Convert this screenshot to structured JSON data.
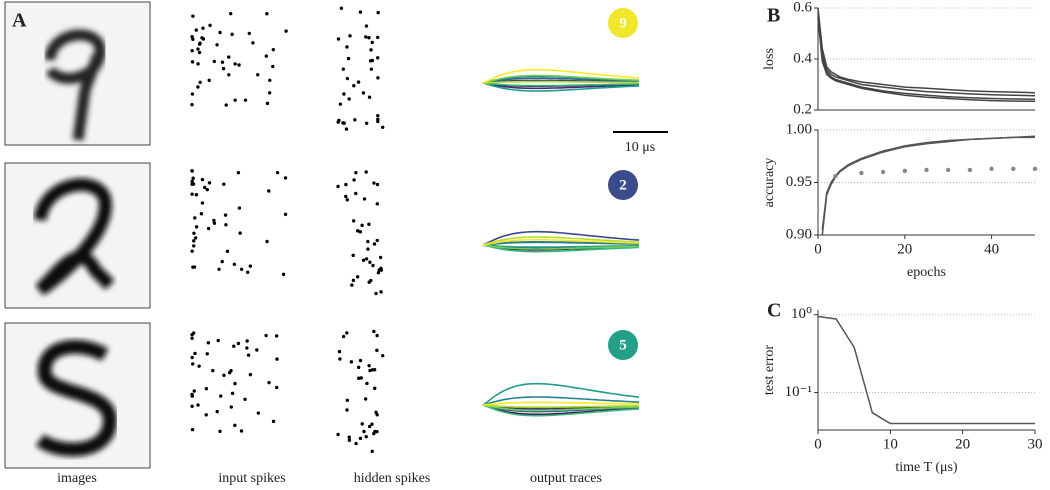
{
  "panels": {
    "a": "A",
    "b": "B",
    "c": "C"
  },
  "panel_a": {
    "column_labels": [
      "images",
      "input spikes",
      "hidden spikes",
      "output traces"
    ],
    "predictions": [
      "9",
      "2",
      "5"
    ],
    "prediction_colors": [
      "#f2e62a",
      "#3b4c8c",
      "#22a187"
    ],
    "scale_bar": "10 μs"
  },
  "chart_data": [
    {
      "type": "line",
      "ylabel": "loss",
      "xlim": [
        0,
        50
      ],
      "ylim": [
        0.2,
        0.6
      ],
      "yticks": [
        0.2,
        0.4,
        0.6
      ],
      "grid": true,
      "x": [
        0,
        1,
        2,
        3,
        4,
        5,
        7,
        10,
        15,
        20,
        25,
        30,
        35,
        40,
        45,
        50
      ],
      "series": [
        {
          "color": "#444444",
          "values": [
            0.6,
            0.44,
            0.37,
            0.35,
            0.34,
            0.33,
            0.32,
            0.31,
            0.3,
            0.29,
            0.285,
            0.28,
            0.275,
            0.272,
            0.27,
            0.268
          ]
        },
        {
          "color": "#444444",
          "values": [
            0.58,
            0.42,
            0.36,
            0.34,
            0.33,
            0.325,
            0.315,
            0.3,
            0.29,
            0.28,
            0.272,
            0.268,
            0.263,
            0.26,
            0.258,
            0.256
          ]
        },
        {
          "color": "#444444",
          "values": [
            0.57,
            0.4,
            0.35,
            0.33,
            0.32,
            0.315,
            0.305,
            0.29,
            0.275,
            0.265,
            0.258,
            0.252,
            0.248,
            0.245,
            0.243,
            0.242
          ]
        },
        {
          "color": "#444444",
          "values": [
            0.56,
            0.39,
            0.34,
            0.325,
            0.315,
            0.31,
            0.3,
            0.285,
            0.27,
            0.258,
            0.25,
            0.245,
            0.24,
            0.237,
            0.235,
            0.234
          ]
        }
      ]
    },
    {
      "type": "line",
      "ylabel": "accuracy",
      "xlabel": "epochs",
      "xlim": [
        0,
        50
      ],
      "ylim": [
        0.9,
        1.0
      ],
      "yticks": [
        {
          "value": 0.9,
          "label": "0.90"
        },
        0.95,
        {
          "value": 1.0,
          "label": "1.00"
        }
      ],
      "xticks": [
        0,
        20,
        40
      ],
      "grid": true,
      "x": [
        1,
        2,
        3,
        4,
        5,
        7,
        10,
        15,
        20,
        25,
        30,
        35,
        40,
        45,
        50
      ],
      "series": [
        {
          "color": "#555555",
          "values": [
            0.9,
            0.938,
            0.948,
            0.955,
            0.96,
            0.966,
            0.972,
            0.979,
            0.984,
            0.987,
            0.989,
            0.991,
            0.992,
            0.993,
            0.993
          ]
        },
        {
          "color": "#555555",
          "values": [
            0.905,
            0.94,
            0.95,
            0.956,
            0.961,
            0.967,
            0.973,
            0.98,
            0.985,
            0.988,
            0.99,
            0.991,
            0.992,
            0.993,
            0.994
          ]
        },
        {
          "color": "#888888",
          "mode": "markers",
          "values": [
            null,
            null,
            null,
            0.956,
            null,
            null,
            0.959,
            0.96,
            0.961,
            0.962,
            0.962,
            0.962,
            0.963,
            0.963,
            0.963
          ]
        }
      ]
    },
    {
      "type": "line",
      "ylabel": "test error",
      "xlabel": "time T (μs)",
      "log": true,
      "xlim": [
        0,
        30
      ],
      "ylim": [
        0.033,
        1.15
      ],
      "yticks": [
        {
          "value": 0.1,
          "label": "10⁻¹"
        },
        {
          "value": 1,
          "label": "10⁰"
        }
      ],
      "xticks": [
        0,
        10,
        20,
        30
      ],
      "grid": true,
      "x": [
        0,
        2.5,
        5,
        7.5,
        10,
        12.5,
        15,
        17.5,
        20,
        22.5,
        25,
        27.5,
        30
      ],
      "series": [
        {
          "color": "#555555",
          "values": [
            0.95,
            0.88,
            0.38,
            0.055,
            0.04,
            0.04,
            0.04,
            0.04,
            0.04,
            0.04,
            0.04,
            0.04,
            0.04
          ]
        }
      ]
    }
  ]
}
